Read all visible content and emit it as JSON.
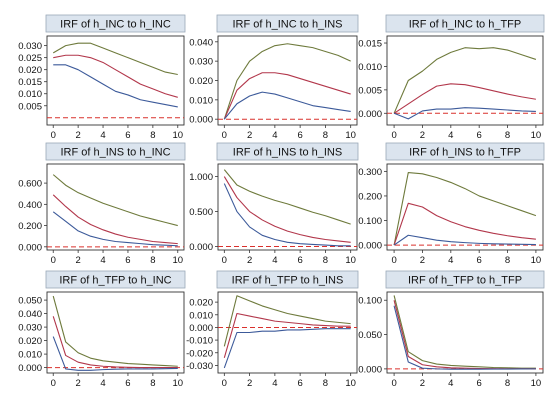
{
  "figure": {
    "colors": {
      "title_bg": "#dbe4ee",
      "title_border": "#9aa9b8",
      "frame": "#333333",
      "zero_line": "#d9302c",
      "upper_band": "#6e7a3c",
      "irf": "#b2374b",
      "lower_band": "#3c5a9a"
    }
  },
  "chart_data": [
    {
      "type": "line",
      "title": "IRF of h_INC to h_INC",
      "x": [
        0,
        1,
        2,
        3,
        4,
        5,
        6,
        7,
        8,
        9,
        10
      ],
      "ylim": [
        -0.003,
        0.034
      ],
      "yticks": [
        0.005,
        0.01,
        0.015,
        0.02,
        0.025,
        0.03
      ],
      "ytick_labels": [
        "0.005",
        "0.010",
        "0.015",
        "0.020",
        "0.025",
        "0.030"
      ],
      "xticks": [
        0,
        2,
        4,
        6,
        8,
        10
      ],
      "xtick_labels": [
        "0",
        "2",
        "4",
        "6",
        "8",
        "10"
      ],
      "zero_line": true,
      "series": [
        {
          "role": "upper",
          "values": [
            0.027,
            0.03,
            0.031,
            0.031,
            0.029,
            0.027,
            0.025,
            0.023,
            0.021,
            0.019,
            0.018
          ]
        },
        {
          "role": "irf",
          "values": [
            0.025,
            0.026,
            0.026,
            0.025,
            0.023,
            0.02,
            0.017,
            0.014,
            0.012,
            0.01,
            0.0085
          ]
        },
        {
          "role": "lower",
          "values": [
            0.022,
            0.022,
            0.02,
            0.017,
            0.014,
            0.011,
            0.0095,
            0.0075,
            0.0065,
            0.0055,
            0.0045
          ]
        }
      ]
    },
    {
      "type": "line",
      "title": "IRF of h_INC to h_INS",
      "x": [
        0,
        1,
        2,
        3,
        4,
        5,
        6,
        7,
        8,
        9,
        10
      ],
      "ylim": [
        -0.003,
        0.043
      ],
      "yticks": [
        0.0,
        0.01,
        0.02,
        0.03,
        0.04
      ],
      "ytick_labels": [
        "0.000",
        "0.010",
        "0.020",
        "0.030",
        "0.040"
      ],
      "xticks": [
        0,
        2,
        4,
        6,
        8,
        10
      ],
      "xtick_labels": [
        "0",
        "2",
        "4",
        "6",
        "8",
        "10"
      ],
      "zero_line": true,
      "series": [
        {
          "role": "upper",
          "values": [
            0.0,
            0.02,
            0.03,
            0.035,
            0.038,
            0.039,
            0.038,
            0.037,
            0.035,
            0.033,
            0.03
          ]
        },
        {
          "role": "irf",
          "values": [
            0.0,
            0.015,
            0.021,
            0.024,
            0.024,
            0.023,
            0.021,
            0.019,
            0.017,
            0.015,
            0.013
          ]
        },
        {
          "role": "lower",
          "values": [
            0.0,
            0.008,
            0.012,
            0.014,
            0.013,
            0.011,
            0.009,
            0.007,
            0.006,
            0.005,
            0.004
          ]
        }
      ]
    },
    {
      "type": "line",
      "title": "IRF of h_INC to h_TFP",
      "x": [
        0,
        1,
        2,
        3,
        4,
        5,
        6,
        7,
        8,
        9,
        10
      ],
      "ylim": [
        -0.0025,
        0.0165
      ],
      "yticks": [
        0.0,
        0.005,
        0.01,
        0.015
      ],
      "ytick_labels": [
        "0.000",
        "0.005",
        "0.010",
        "0.015"
      ],
      "xticks": [
        0,
        2,
        4,
        6,
        8,
        10
      ],
      "xtick_labels": [
        "0",
        "2",
        "4",
        "6",
        "8",
        "10"
      ],
      "zero_line": true,
      "series": [
        {
          "role": "upper",
          "values": [
            0.0,
            0.007,
            0.009,
            0.0115,
            0.013,
            0.014,
            0.0138,
            0.014,
            0.0135,
            0.0125,
            0.0115
          ]
        },
        {
          "role": "irf",
          "values": [
            0.0,
            0.002,
            0.004,
            0.0058,
            0.0063,
            0.0061,
            0.0055,
            0.0048,
            0.0041,
            0.0035,
            0.003
          ]
        },
        {
          "role": "lower",
          "values": [
            0.0,
            -0.0012,
            0.0005,
            0.0009,
            0.0009,
            0.0012,
            0.0011,
            0.0009,
            0.0007,
            0.0005,
            0.0004
          ]
        }
      ]
    },
    {
      "type": "line",
      "title": "IRF of h_INS to h_INC",
      "x": [
        0,
        1,
        2,
        3,
        4,
        5,
        6,
        7,
        8,
        9,
        10
      ],
      "ylim": [
        -0.03,
        0.78
      ],
      "yticks": [
        0.0,
        0.2,
        0.4,
        0.6
      ],
      "ytick_labels": [
        "0.000",
        "0.200",
        "0.400",
        "0.600"
      ],
      "xticks": [
        0,
        2,
        4,
        6,
        8,
        10
      ],
      "xtick_labels": [
        "0",
        "2",
        "4",
        "6",
        "8",
        "10"
      ],
      "zero_line": true,
      "series": [
        {
          "role": "upper",
          "values": [
            0.68,
            0.58,
            0.51,
            0.46,
            0.41,
            0.37,
            0.33,
            0.29,
            0.26,
            0.23,
            0.2
          ]
        },
        {
          "role": "irf",
          "values": [
            0.49,
            0.38,
            0.28,
            0.21,
            0.16,
            0.12,
            0.09,
            0.07,
            0.05,
            0.04,
            0.03
          ]
        },
        {
          "role": "lower",
          "values": [
            0.33,
            0.24,
            0.15,
            0.1,
            0.07,
            0.05,
            0.04,
            0.03,
            0.02,
            0.015,
            0.01
          ]
        }
      ]
    },
    {
      "type": "line",
      "title": "IRF of h_INS to h_INS",
      "x": [
        0,
        1,
        2,
        3,
        4,
        5,
        6,
        7,
        8,
        9,
        10
      ],
      "ylim": [
        -0.05,
        1.18
      ],
      "yticks": [
        0.0,
        0.5,
        1.0
      ],
      "ytick_labels": [
        "0.000",
        "0.500",
        "1.000"
      ],
      "xticks": [
        0,
        2,
        4,
        6,
        8,
        10
      ],
      "xtick_labels": [
        "0",
        "2",
        "4",
        "6",
        "8",
        "10"
      ],
      "zero_line": true,
      "series": [
        {
          "role": "upper",
          "values": [
            1.1,
            0.88,
            0.79,
            0.72,
            0.66,
            0.61,
            0.55,
            0.49,
            0.44,
            0.38,
            0.32
          ]
        },
        {
          "role": "irf",
          "values": [
            1.0,
            0.7,
            0.5,
            0.38,
            0.29,
            0.22,
            0.17,
            0.13,
            0.1,
            0.08,
            0.06
          ]
        },
        {
          "role": "lower",
          "values": [
            0.9,
            0.5,
            0.28,
            0.16,
            0.1,
            0.06,
            0.04,
            0.03,
            0.02,
            0.01,
            0.01
          ]
        }
      ]
    },
    {
      "type": "line",
      "title": "IRF of h_INS to h_TFP",
      "x": [
        0,
        1,
        2,
        3,
        4,
        5,
        6,
        7,
        8,
        9,
        10
      ],
      "ylim": [
        -0.02,
        0.33
      ],
      "yticks": [
        0.0,
        0.1,
        0.2,
        0.3
      ],
      "ytick_labels": [
        "0.000",
        "0.100",
        "0.200",
        "0.300"
      ],
      "xticks": [
        0,
        2,
        4,
        6,
        8,
        10
      ],
      "xtick_labels": [
        "0",
        "2",
        "4",
        "6",
        "8",
        "10"
      ],
      "zero_line": true,
      "series": [
        {
          "role": "upper",
          "values": [
            0.0,
            0.295,
            0.29,
            0.275,
            0.255,
            0.23,
            0.2,
            0.18,
            0.16,
            0.14,
            0.12
          ]
        },
        {
          "role": "irf",
          "values": [
            0.0,
            0.17,
            0.155,
            0.12,
            0.095,
            0.075,
            0.06,
            0.048,
            0.038,
            0.03,
            0.024
          ]
        },
        {
          "role": "lower",
          "values": [
            0.0,
            0.04,
            0.03,
            0.02,
            0.014,
            0.01,
            0.007,
            0.005,
            0.004,
            0.003,
            0.002
          ]
        }
      ]
    },
    {
      "type": "line",
      "title": "IRF of h_TFP to h_INC",
      "x": [
        0,
        1,
        2,
        3,
        4,
        5,
        6,
        7,
        8,
        9,
        10
      ],
      "ylim": [
        -0.004,
        0.056
      ],
      "yticks": [
        0.0,
        0.01,
        0.02,
        0.03,
        0.04,
        0.05
      ],
      "ytick_labels": [
        "0.000",
        "0.010",
        "0.020",
        "0.030",
        "0.040",
        "0.050"
      ],
      "xticks": [
        0,
        2,
        4,
        6,
        8,
        10
      ],
      "xtick_labels": [
        "0",
        "2",
        "4",
        "6",
        "8",
        "10"
      ],
      "zero_line": true,
      "series": [
        {
          "role": "upper",
          "values": [
            0.053,
            0.019,
            0.011,
            0.007,
            0.005,
            0.004,
            0.003,
            0.0025,
            0.002,
            0.0015,
            0.001
          ]
        },
        {
          "role": "irf",
          "values": [
            0.038,
            0.009,
            0.004,
            0.002,
            0.001,
            0.0005,
            0.0002,
            0.0,
            0.0,
            0.0,
            0.0
          ]
        },
        {
          "role": "lower",
          "values": [
            0.023,
            -0.001,
            -0.002,
            -0.002,
            -0.0015,
            -0.0012,
            -0.001,
            -0.001,
            -0.001,
            -0.0008,
            -0.0006
          ]
        }
      ]
    },
    {
      "type": "line",
      "title": "IRF of h_TFP to h_INS",
      "x": [
        0,
        1,
        2,
        3,
        4,
        5,
        6,
        7,
        8,
        9,
        10
      ],
      "ylim": [
        -0.036,
        0.028
      ],
      "yticks": [
        -0.03,
        -0.02,
        -0.01,
        0.0,
        0.01,
        0.02
      ],
      "ytick_labels": [
        "-0.030",
        "-0.020",
        "-0.010",
        "0.000",
        "0.010",
        "0.020"
      ],
      "xticks": [
        0,
        2,
        4,
        6,
        8,
        10
      ],
      "xtick_labels": [
        "0",
        "2",
        "4",
        "6",
        "8",
        "10"
      ],
      "zero_line": true,
      "series": [
        {
          "role": "upper",
          "values": [
            -0.015,
            0.025,
            0.021,
            0.017,
            0.014,
            0.011,
            0.009,
            0.007,
            0.005,
            0.004,
            0.003
          ]
        },
        {
          "role": "irf",
          "values": [
            -0.024,
            0.011,
            0.009,
            0.007,
            0.005,
            0.004,
            0.003,
            0.002,
            0.0015,
            0.001,
            0.001
          ]
        },
        {
          "role": "lower",
          "values": [
            -0.032,
            -0.004,
            -0.004,
            -0.003,
            -0.003,
            -0.002,
            -0.002,
            -0.0015,
            -0.001,
            -0.001,
            -0.001
          ]
        }
      ]
    },
    {
      "type": "line",
      "title": "IRF of h_TFP to h_TFP",
      "x": [
        0,
        1,
        2,
        3,
        4,
        5,
        6,
        7,
        8,
        9,
        10
      ],
      "ylim": [
        -0.006,
        0.112
      ],
      "yticks": [
        0.0,
        0.05,
        0.1
      ],
      "ytick_labels": [
        "0.000",
        "0.050",
        "0.100"
      ],
      "xticks": [
        0,
        2,
        4,
        6,
        8,
        10
      ],
      "xtick_labels": [
        "0",
        "2",
        "4",
        "6",
        "8",
        "10"
      ],
      "zero_line": true,
      "series": [
        {
          "role": "upper",
          "values": [
            0.107,
            0.025,
            0.012,
            0.007,
            0.005,
            0.004,
            0.003,
            0.002,
            0.0015,
            0.001,
            0.001
          ]
        },
        {
          "role": "irf",
          "values": [
            0.1,
            0.018,
            0.006,
            0.003,
            0.0015,
            0.001,
            0.0005,
            0.0003,
            0.0002,
            0.0001,
            0.0001
          ]
        },
        {
          "role": "lower",
          "values": [
            0.092,
            0.01,
            0.001,
            0.0,
            -0.0005,
            -0.0005,
            -0.0004,
            -0.0003,
            -0.0002,
            -0.0001,
            0.0
          ]
        }
      ]
    }
  ]
}
